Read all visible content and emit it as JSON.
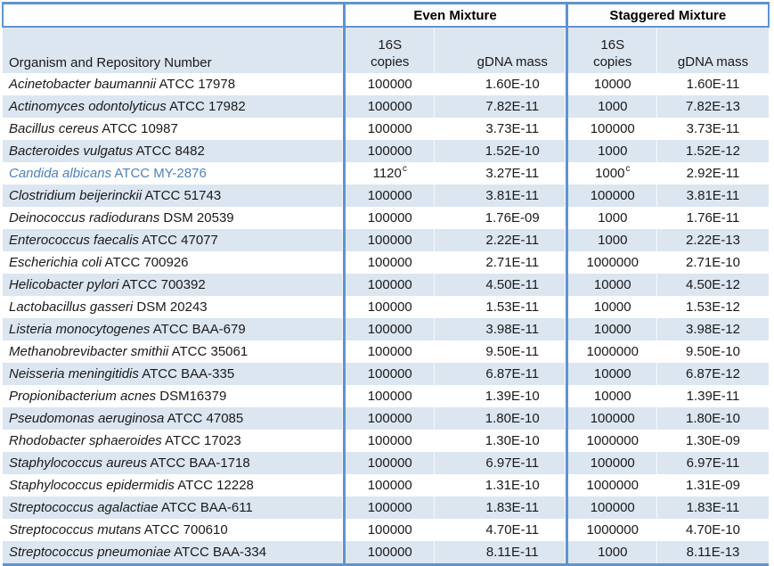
{
  "table": {
    "col1_header": "Organism and Repository Number",
    "groups": [
      {
        "label": "Even Mixture"
      },
      {
        "label": "Staggered Mixture"
      }
    ],
    "subheaders": {
      "copies_line1": "16S",
      "copies_line2": "copies",
      "gdna": "gDNA mass"
    },
    "colors": {
      "stripe": "#dce6f1",
      "border": "#6094cc",
      "accent_text": "#4f81bd",
      "text": "#1a1a1a"
    },
    "rows": [
      {
        "name": "Acinetobacter baumannii",
        "repo": "ATCC 17978",
        "blue": false,
        "even_copies": "100000",
        "even_copies_sup": "",
        "even_gdna": "1.60E-10",
        "stag_copies": "10000",
        "stag_copies_sup": "",
        "stag_gdna": "1.60E-11"
      },
      {
        "name": "Actinomyces odontolyticus",
        "repo": "ATCC 17982",
        "blue": false,
        "even_copies": "100000",
        "even_copies_sup": "",
        "even_gdna": "7.82E-11",
        "stag_copies": "1000",
        "stag_copies_sup": "",
        "stag_gdna": "7.82E-13"
      },
      {
        "name": "Bacillus cereus",
        "repo": "ATCC 10987",
        "blue": false,
        "even_copies": "100000",
        "even_copies_sup": "",
        "even_gdna": "3.73E-11",
        "stag_copies": "100000",
        "stag_copies_sup": "",
        "stag_gdna": "3.73E-11"
      },
      {
        "name": "Bacteroides vulgatus",
        "repo": "ATCC 8482",
        "blue": false,
        "even_copies": "100000",
        "even_copies_sup": "",
        "even_gdna": "1.52E-10",
        "stag_copies": "1000",
        "stag_copies_sup": "",
        "stag_gdna": "1.52E-12"
      },
      {
        "name": "Candida albicans",
        "repo": "ATCC MY-2876",
        "blue": true,
        "even_copies": "1120",
        "even_copies_sup": "c",
        "even_gdna": "3.27E-11",
        "stag_copies": "1000",
        "stag_copies_sup": "c",
        "stag_gdna": "2.92E-11"
      },
      {
        "name": "Clostridium beijerinckii",
        "repo": "ATCC 51743",
        "blue": false,
        "even_copies": "100000",
        "even_copies_sup": "",
        "even_gdna": "3.81E-11",
        "stag_copies": "100000",
        "stag_copies_sup": "",
        "stag_gdna": "3.81E-11"
      },
      {
        "name": "Deinococcus radiodurans",
        "repo": "DSM 20539",
        "blue": false,
        "even_copies": "100000",
        "even_copies_sup": "",
        "even_gdna": "1.76E-09",
        "stag_copies": "1000",
        "stag_copies_sup": "",
        "stag_gdna": "1.76E-11"
      },
      {
        "name": "Enterococcus faecalis",
        "repo": "ATCC 47077",
        "blue": false,
        "even_copies": "100000",
        "even_copies_sup": "",
        "even_gdna": "2.22E-11",
        "stag_copies": "1000",
        "stag_copies_sup": "",
        "stag_gdna": "2.22E-13"
      },
      {
        "name": "Escherichia coli",
        "repo": "ATCC 700926",
        "blue": false,
        "even_copies": "100000",
        "even_copies_sup": "",
        "even_gdna": "2.71E-11",
        "stag_copies": "1000000",
        "stag_copies_sup": "",
        "stag_gdna": "2.71E-10"
      },
      {
        "name": "Helicobacter pylori",
        "repo": "ATCC 700392",
        "blue": false,
        "even_copies": "100000",
        "even_copies_sup": "",
        "even_gdna": "4.50E-11",
        "stag_copies": "10000",
        "stag_copies_sup": "",
        "stag_gdna": "4.50E-12"
      },
      {
        "name": "Lactobacillus gasseri",
        "repo": "DSM 20243",
        "blue": false,
        "even_copies": "100000",
        "even_copies_sup": "",
        "even_gdna": "1.53E-11",
        "stag_copies": "10000",
        "stag_copies_sup": "",
        "stag_gdna": "1.53E-12"
      },
      {
        "name": "Listeria monocytogenes",
        "repo": "ATCC BAA-679",
        "blue": false,
        "even_copies": "100000",
        "even_copies_sup": "",
        "even_gdna": "3.98E-11",
        "stag_copies": "10000",
        "stag_copies_sup": "",
        "stag_gdna": "3.98E-12"
      },
      {
        "name": "Methanobrevibacter smithii",
        "repo": "ATCC 35061",
        "blue": false,
        "even_copies": "100000",
        "even_copies_sup": "",
        "even_gdna": "9.50E-11",
        "stag_copies": "1000000",
        "stag_copies_sup": "",
        "stag_gdna": "9.50E-10"
      },
      {
        "name": "Neisseria meningitidis",
        "repo": "ATCC BAA-335",
        "blue": false,
        "even_copies": "100000",
        "even_copies_sup": "",
        "even_gdna": "6.87E-11",
        "stag_copies": "10000",
        "stag_copies_sup": "",
        "stag_gdna": "6.87E-12"
      },
      {
        "name": "Propionibacterium acnes",
        "repo": "DSM16379",
        "blue": false,
        "even_copies": "100000",
        "even_copies_sup": "",
        "even_gdna": "1.39E-10",
        "stag_copies": "10000",
        "stag_copies_sup": "",
        "stag_gdna": "1.39E-11"
      },
      {
        "name": "Pseudomonas aeruginosa",
        "repo": "ATCC 47085",
        "blue": false,
        "even_copies": "100000",
        "even_copies_sup": "",
        "even_gdna": "1.80E-10",
        "stag_copies": "100000",
        "stag_copies_sup": "",
        "stag_gdna": "1.80E-10"
      },
      {
        "name": "Rhodobacter sphaeroides",
        "repo": "ATCC 17023",
        "blue": false,
        "even_copies": "100000",
        "even_copies_sup": "",
        "even_gdna": "1.30E-10",
        "stag_copies": "1000000",
        "stag_copies_sup": "",
        "stag_gdna": "1.30E-09"
      },
      {
        "name": "Staphylococcus aureus",
        "repo": "ATCC BAA-1718",
        "blue": false,
        "even_copies": "100000",
        "even_copies_sup": "",
        "even_gdna": "6.97E-11",
        "stag_copies": "100000",
        "stag_copies_sup": "",
        "stag_gdna": "6.97E-11"
      },
      {
        "name": "Staphylococcus epidermidis",
        "repo": "ATCC 12228",
        "blue": false,
        "even_copies": "100000",
        "even_copies_sup": "",
        "even_gdna": "1.31E-10",
        "stag_copies": "1000000",
        "stag_copies_sup": "",
        "stag_gdna": "1.31E-09"
      },
      {
        "name": "Streptococcus agalactiae",
        "repo": "ATCC BAA-611",
        "blue": false,
        "even_copies": "100000",
        "even_copies_sup": "",
        "even_gdna": "1.83E-11",
        "stag_copies": "100000",
        "stag_copies_sup": "",
        "stag_gdna": "1.83E-11"
      },
      {
        "name": "Streptococcus mutans",
        "repo": "ATCC 700610",
        "blue": false,
        "even_copies": "100000",
        "even_copies_sup": "",
        "even_gdna": "4.70E-11",
        "stag_copies": "1000000",
        "stag_copies_sup": "",
        "stag_gdna": "4.70E-10"
      },
      {
        "name": "Streptococcus pneumoniae",
        "repo": "ATCC BAA-334",
        "blue": false,
        "even_copies": "100000",
        "even_copies_sup": "",
        "even_gdna": "8.11E-11",
        "stag_copies": "1000",
        "stag_copies_sup": "",
        "stag_gdna": "8.11E-13"
      }
    ]
  }
}
